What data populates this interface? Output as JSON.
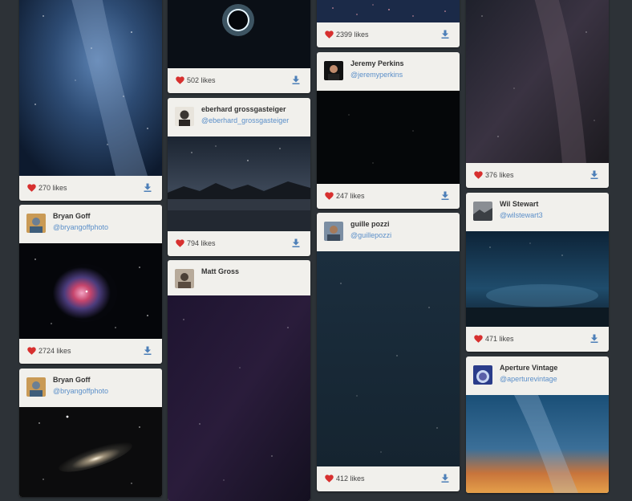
{
  "likes_suffix": "likes",
  "accent_color": "#5b8fc9",
  "heart_color": "#d7302f",
  "columns": [
    {
      "cards": [
        {
          "likes": "270"
        },
        {
          "author_name": "Bryan Goff",
          "handle": "@bryangoffphoto",
          "likes": "2724"
        },
        {
          "author_name": "Bryan Goff",
          "handle": "@bryangoffphoto"
        }
      ]
    },
    {
      "cards": [
        {
          "likes": "502"
        },
        {
          "author_name": "eberhard grossgasteiger",
          "handle": "@eberhard_grossgasteiger",
          "likes": "794"
        },
        {
          "author_name": "Matt Gross"
        }
      ]
    },
    {
      "cards": [
        {
          "likes": "2399"
        },
        {
          "author_name": "Jeremy Perkins",
          "handle": "@jeremyperkins",
          "likes": "247"
        },
        {
          "author_name": "guille pozzi",
          "handle": "@guillepozzi",
          "likes": "412"
        }
      ]
    },
    {
      "cards": [
        {
          "likes": "376"
        },
        {
          "author_name": "Wil Stewart",
          "handle": "@wilstewart3",
          "likes": "471"
        },
        {
          "author_name": "Aperture Vintage",
          "handle": "@aperturevintage"
        }
      ]
    }
  ]
}
